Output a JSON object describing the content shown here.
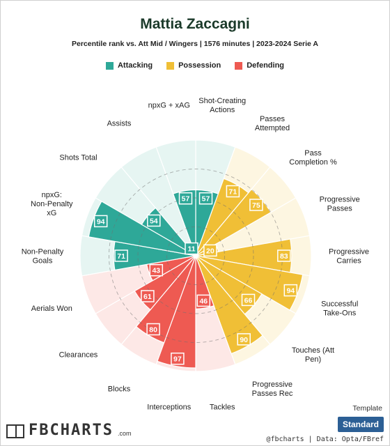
{
  "title": "Mattia Zaccagni",
  "subtitle": "Percentile rank vs. Att Mid / Wingers | 1576 minutes | 2023-2024 Serie A",
  "legend": [
    {
      "label": "Attacking",
      "color": "#2ea898"
    },
    {
      "label": "Possession",
      "color": "#f0bf36"
    },
    {
      "label": "Defending",
      "color": "#ee5a52"
    }
  ],
  "chart_data": {
    "type": "polar-bar",
    "max_value": 100,
    "categories": [
      {
        "label": "Shot-Creating Actions",
        "value": 57,
        "group": "Attacking"
      },
      {
        "label": "Passes Attempted",
        "value": 71,
        "group": "Possession"
      },
      {
        "label": "Pass Completion %",
        "value": 75,
        "group": "Possession"
      },
      {
        "label": "Progressive Passes",
        "value": 20,
        "group": "Possession"
      },
      {
        "label": "Progressive Carries",
        "value": 83,
        "group": "Possession"
      },
      {
        "label": "Successful Take-Ons",
        "value": 94,
        "group": "Possession"
      },
      {
        "label": "Touches (Att Pen)",
        "value": 66,
        "group": "Possession"
      },
      {
        "label": "Progressive Passes Rec",
        "value": 90,
        "group": "Possession"
      },
      {
        "label": "Tackles",
        "value": 46,
        "group": "Defending"
      },
      {
        "label": "Interceptions",
        "value": 97,
        "group": "Defending"
      },
      {
        "label": "Blocks",
        "value": 80,
        "group": "Defending"
      },
      {
        "label": "Clearances",
        "value": 61,
        "group": "Defending"
      },
      {
        "label": "Aerials Won",
        "value": 43,
        "group": "Defending"
      },
      {
        "label": "Non-Penalty Goals",
        "value": 71,
        "group": "Attacking"
      },
      {
        "label": "npxG: Non-Penalty xG",
        "value": 94,
        "group": "Attacking"
      },
      {
        "label": "Shots Total",
        "value": 54,
        "group": "Attacking"
      },
      {
        "label": "Assists",
        "value": 11,
        "group": "Attacking"
      },
      {
        "label": "npxG + xAG",
        "value": 57,
        "group": "Attacking"
      }
    ]
  },
  "template": {
    "label": "Template",
    "button": "Standard"
  },
  "brand": {
    "name": "FBCHARTS",
    "suffix": ".com"
  },
  "footer": {
    "credit": "@fbcharts | Data: Opta/FBref"
  }
}
